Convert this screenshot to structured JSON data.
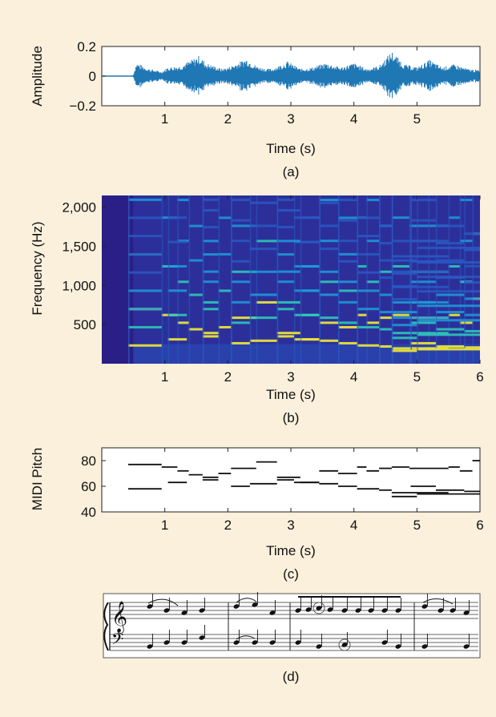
{
  "chart_data": [
    {
      "panel": "(a)",
      "type": "area",
      "xlabel": "Time (s)",
      "ylabel": "Amplitude",
      "xlim": [
        0,
        6
      ],
      "ylim": [
        -0.2,
        0.2
      ],
      "xticks": [
        "1",
        "2",
        "3",
        "4",
        "5"
      ],
      "yticks": [
        "0.2",
        "0",
        "−0.2"
      ],
      "color": "#1f77b4",
      "envelope": {
        "x": [
          0.5,
          0.55,
          0.75,
          0.95,
          1.05,
          1.25,
          1.55,
          1.65,
          1.9,
          2.0,
          2.3,
          2.45,
          2.6,
          2.7,
          2.95,
          3.15,
          3.35,
          3.55,
          3.8,
          4.0,
          4.2,
          4.4,
          4.6,
          4.8,
          5.0,
          5.2,
          5.4,
          5.6,
          5.8,
          6.0
        ],
        "amp": [
          0.01,
          0.09,
          0.05,
          0.03,
          0.06,
          0.07,
          0.14,
          0.09,
          0.05,
          0.06,
          0.12,
          0.07,
          0.05,
          0.05,
          0.1,
          0.05,
          0.06,
          0.09,
          0.06,
          0.09,
          0.05,
          0.07,
          0.17,
          0.08,
          0.06,
          0.11,
          0.06,
          0.08,
          0.05,
          0.04
        ]
      }
    },
    {
      "panel": "(b)",
      "type": "heatmap",
      "xlabel": "Time (s)",
      "ylabel": "Frequency (Hz)",
      "xlim": [
        0,
        6
      ],
      "ylim": [
        0,
        2150
      ],
      "xticks": [
        "1",
        "2",
        "3",
        "4",
        "5",
        "6"
      ],
      "yticks": [
        "2,000",
        "1,500",
        "1,000",
        "500"
      ],
      "colormap": [
        "#2a1f86",
        "#2a58c2",
        "#1f9cd8",
        "#2ed0b8",
        "#e8e23a"
      ]
    },
    {
      "panel": "(c)",
      "type": "line",
      "xlabel": "Time (s)",
      "ylabel": "MIDI Pitch",
      "xlim": [
        0,
        6
      ],
      "ylim": [
        40,
        90
      ],
      "xticks": [
        "1",
        "2",
        "3",
        "4",
        "5",
        "6"
      ],
      "yticks": [
        "80",
        "60",
        "40"
      ],
      "notes": [
        [
          0.42,
          0.95,
          77
        ],
        [
          0.95,
          1.2,
          75
        ],
        [
          1.2,
          1.38,
          72
        ],
        [
          1.38,
          1.6,
          69
        ],
        [
          1.6,
          1.85,
          67
        ],
        [
          1.85,
          2.05,
          70
        ],
        [
          2.05,
          2.45,
          74
        ],
        [
          2.45,
          2.78,
          79
        ],
        [
          2.78,
          3.05,
          65
        ],
        [
          3.05,
          3.45,
          63
        ],
        [
          3.45,
          3.75,
          72
        ],
        [
          3.75,
          4.05,
          70
        ],
        [
          4.05,
          4.2,
          75
        ],
        [
          4.2,
          4.4,
          72
        ],
        [
          4.4,
          4.6,
          74
        ],
        [
          4.6,
          4.88,
          75
        ],
        [
          4.88,
          5.18,
          74
        ],
        [
          5.18,
          5.5,
          74
        ],
        [
          5.5,
          5.68,
          75
        ],
        [
          5.68,
          5.88,
          72
        ],
        [
          5.88,
          6.0,
          80
        ],
        [
          0.42,
          0.95,
          58
        ],
        [
          1.05,
          1.35,
          63
        ],
        [
          1.6,
          1.85,
          65
        ],
        [
          2.05,
          2.35,
          60
        ],
        [
          2.35,
          2.78,
          62
        ],
        [
          2.78,
          3.15,
          67
        ],
        [
          3.15,
          3.45,
          63
        ],
        [
          3.45,
          3.75,
          62
        ],
        [
          3.75,
          4.05,
          60
        ],
        [
          4.05,
          4.4,
          58
        ],
        [
          4.4,
          4.6,
          57
        ],
        [
          4.6,
          4.9,
          55
        ],
        [
          4.9,
          5.5,
          55
        ],
        [
          4.9,
          5.3,
          60
        ],
        [
          5.3,
          5.75,
          57
        ],
        [
          5.75,
          6.0,
          56
        ],
        [
          4.6,
          5.0,
          52
        ],
        [
          5.0,
          6.0,
          54
        ]
      ]
    }
  ],
  "captions": {
    "a": "(a)",
    "b": "(b)",
    "c": "(c)",
    "d": "(d)"
  }
}
